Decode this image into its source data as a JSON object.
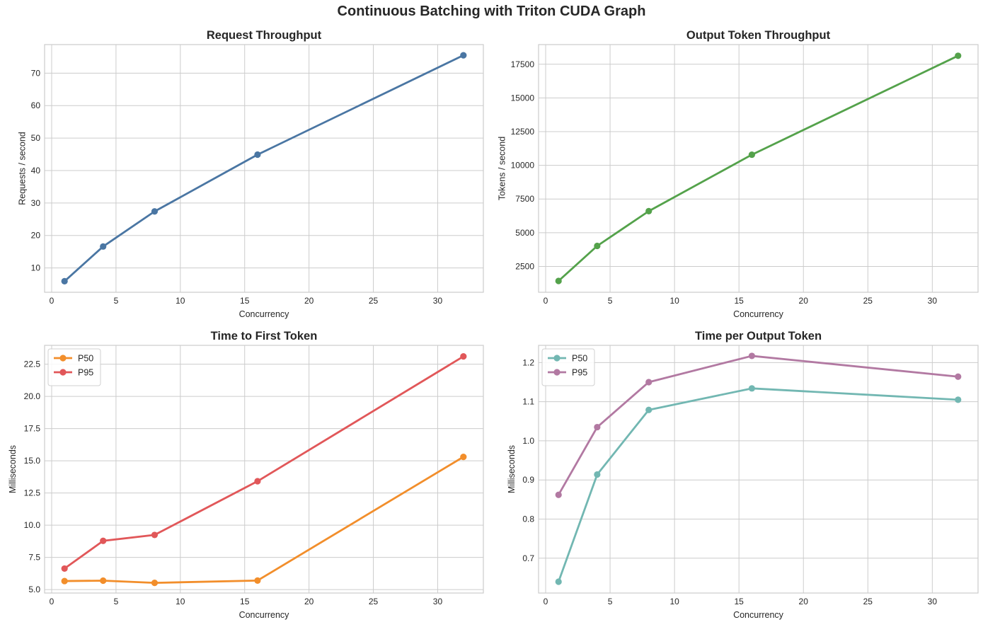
{
  "figure": {
    "suptitle": "Continuous Batching with Triton CUDA Graph"
  },
  "chart_data": [
    {
      "type": "line",
      "title": "Request Throughput",
      "xlabel": "Concurrency",
      "ylabel": "Requests / second",
      "xlim": [
        -0.55,
        33.55
      ],
      "ylim": [
        2.5,
        78.8
      ],
      "xticks": [
        0,
        5,
        10,
        15,
        20,
        25,
        30
      ],
      "yticks": [
        10,
        20,
        30,
        40,
        50,
        60,
        70
      ],
      "grid": true,
      "legend": null,
      "x": [
        1,
        4,
        8,
        16,
        32
      ],
      "series": [
        {
          "name": "",
          "color": "#4a76a3",
          "values": [
            5.9,
            16.6,
            27.4,
            44.9,
            75.5
          ]
        }
      ]
    },
    {
      "type": "line",
      "title": "Output Token Throughput",
      "xlabel": "Concurrency",
      "ylabel": "Tokens / second",
      "xlim": [
        -0.55,
        33.55
      ],
      "ylim": [
        580,
        18960
      ],
      "xticks": [
        0,
        5,
        10,
        15,
        20,
        25,
        30
      ],
      "yticks": [
        2500,
        5000,
        7500,
        10000,
        12500,
        15000,
        17500
      ],
      "grid": true,
      "legend": null,
      "x": [
        1,
        4,
        8,
        16,
        32
      ],
      "series": [
        {
          "name": "",
          "color": "#54a24b",
          "values": [
            1420,
            4020,
            6600,
            10790,
            18130
          ]
        }
      ]
    },
    {
      "type": "line",
      "title": "Time to First Token",
      "xlabel": "Concurrency",
      "ylabel": "Milliseconds",
      "xlim": [
        -0.55,
        33.55
      ],
      "ylim": [
        4.73,
        23.96
      ],
      "xticks": [
        0,
        5,
        10,
        15,
        20,
        25,
        30
      ],
      "yticks": [
        5.0,
        7.5,
        10.0,
        12.5,
        15.0,
        17.5,
        20.0,
        22.5
      ],
      "ytick_labels": [
        "5.0",
        "7.5",
        "10.0",
        "12.5",
        "15.0",
        "17.5",
        "20.0",
        "22.5"
      ],
      "grid": true,
      "legend": "upper-left",
      "x": [
        1,
        4,
        8,
        16,
        32
      ],
      "series": [
        {
          "name": "P50",
          "color": "#f28e2b",
          "values": [
            5.66,
            5.69,
            5.52,
            5.7,
            15.3
          ]
        },
        {
          "name": "P95",
          "color": "#e15759",
          "values": [
            6.63,
            8.78,
            9.24,
            13.41,
            23.1
          ]
        }
      ]
    },
    {
      "type": "line",
      "title": "Time per Output Token",
      "xlabel": "Concurrency",
      "ylabel": "Milliseconds",
      "xlim": [
        -0.55,
        33.55
      ],
      "ylim": [
        0.611,
        1.244
      ],
      "xticks": [
        0,
        5,
        10,
        15,
        20,
        25,
        30
      ],
      "yticks": [
        0.7,
        0.8,
        0.9,
        1.0,
        1.1,
        1.2
      ],
      "ytick_labels": [
        "0.7",
        "0.8",
        "0.9",
        "1.0",
        "1.1",
        "1.2"
      ],
      "grid": true,
      "legend": "upper-left",
      "x": [
        1,
        4,
        8,
        16,
        32
      ],
      "series": [
        {
          "name": "P50",
          "color": "#72b7b2",
          "values": [
            0.64,
            0.914,
            1.079,
            1.134,
            1.105
          ]
        },
        {
          "name": "P95",
          "color": "#b279a2",
          "values": [
            0.862,
            1.035,
            1.15,
            1.217,
            1.164
          ]
        }
      ]
    }
  ]
}
